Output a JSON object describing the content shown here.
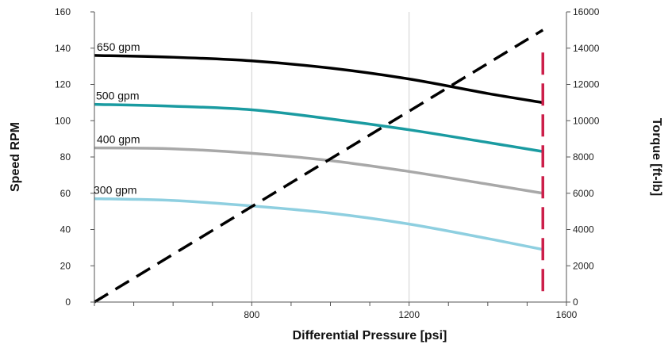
{
  "chart_data": {
    "type": "line",
    "xlabel": "Differential Pressure [psi]",
    "ylabel": "Speed RPM",
    "y2label": "Torque [ft-lb]",
    "xlim": [
      400,
      1600
    ],
    "ylim": [
      0,
      160
    ],
    "y2lim": [
      0,
      16000
    ],
    "x_ticks": [
      800,
      1200,
      1600
    ],
    "y_ticks": [
      0,
      20,
      40,
      60,
      80,
      100,
      120,
      140,
      160
    ],
    "y2_ticks": [
      0,
      2000,
      4000,
      6000,
      8000,
      10000,
      12000,
      14000,
      16000
    ],
    "grid": "vertical",
    "series": [
      {
        "name": "650 gpm",
        "axis": "left",
        "color": "#000000",
        "style": "solid",
        "x": [
          400,
          600,
          800,
          1000,
          1200,
          1400,
          1540
        ],
        "y": [
          136,
          135,
          133,
          129,
          123,
          115,
          110
        ]
      },
      {
        "name": "500 gpm",
        "axis": "left",
        "color": "#1a9ba1",
        "style": "solid",
        "x": [
          400,
          600,
          800,
          1000,
          1200,
          1400,
          1540
        ],
        "y": [
          109,
          108,
          106,
          101,
          95,
          88,
          83
        ]
      },
      {
        "name": "400 gpm",
        "axis": "left",
        "color": "#a8a8a8",
        "style": "solid",
        "x": [
          400,
          600,
          800,
          1000,
          1200,
          1400,
          1540
        ],
        "y": [
          85,
          84.5,
          82,
          78,
          72,
          65,
          60
        ]
      },
      {
        "name": "300 gpm",
        "axis": "left",
        "color": "#8ecfe0",
        "style": "solid",
        "x": [
          400,
          600,
          800,
          1000,
          1200,
          1400,
          1540
        ],
        "y": [
          57,
          56,
          53,
          49,
          43,
          35,
          29
        ]
      },
      {
        "name": "",
        "axis": "right",
        "color": "#000000",
        "style": "dashed",
        "x": [
          400,
          1540
        ],
        "y": [
          0,
          15000
        ]
      },
      {
        "name": "",
        "axis": "left",
        "color": "#cc1f4a",
        "style": "dashed-vertical",
        "x": [
          1540,
          1540
        ],
        "y": [
          6,
          140
        ]
      }
    ]
  }
}
